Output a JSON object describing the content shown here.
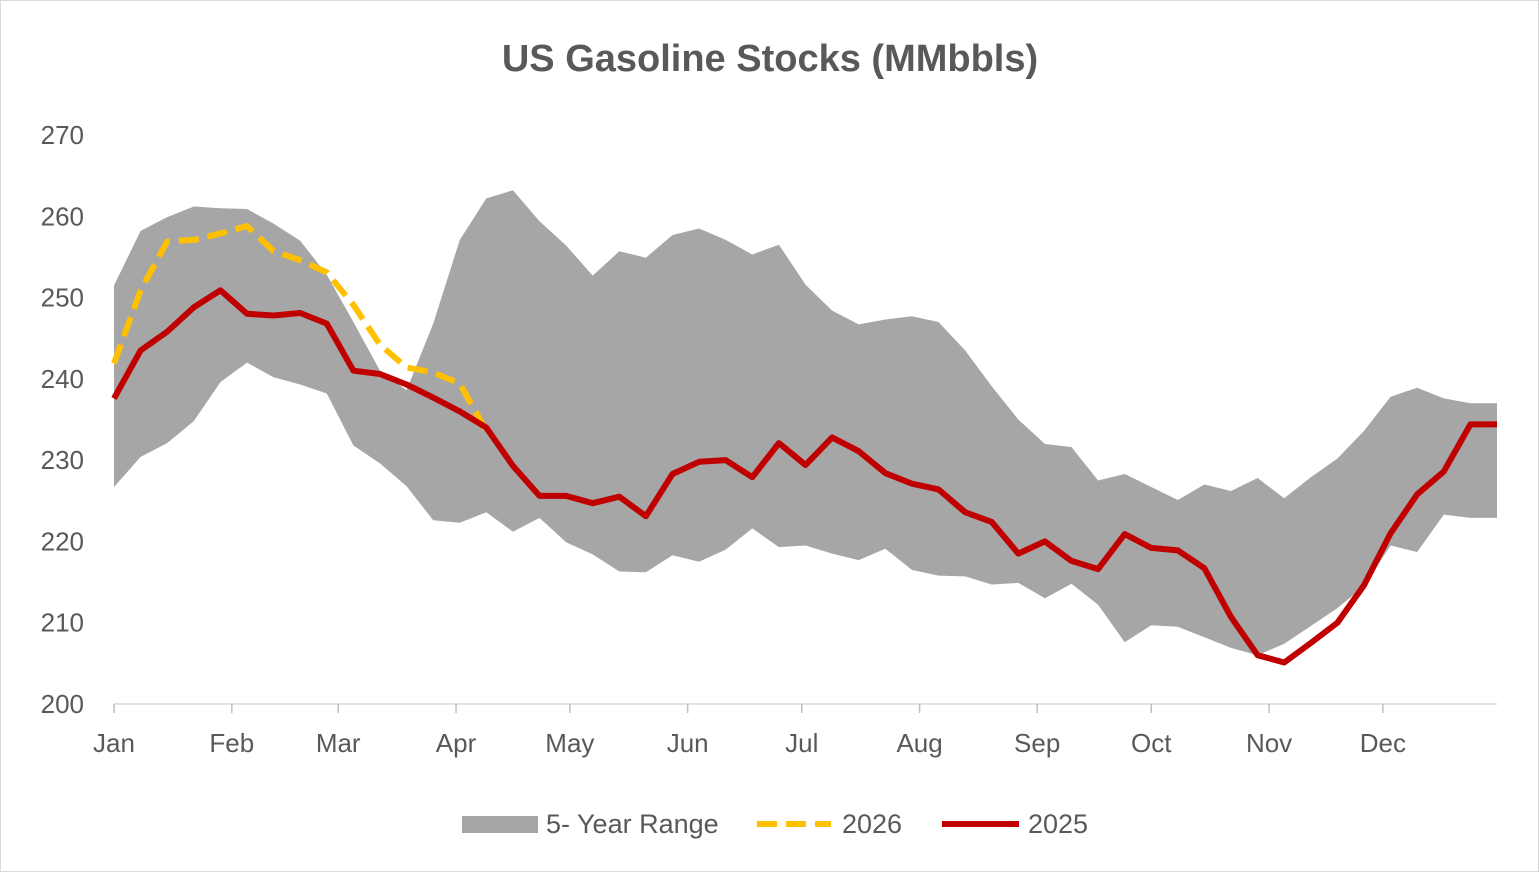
{
  "chart_data": {
    "type": "line",
    "title": "US Gasoline Stocks (MMbbls)",
    "xlabel": "",
    "ylabel": "",
    "ylim": [
      200,
      270
    ],
    "yticks": [
      200,
      210,
      220,
      230,
      240,
      250,
      260,
      270
    ],
    "x_unit": "week",
    "xlim": [
      1,
      53
    ],
    "month_labels": [
      "Jan",
      "Feb",
      "Mar",
      "Apr",
      "May",
      "Jun",
      "Jul",
      "Aug",
      "Sep",
      "Oct",
      "Nov",
      "Dec"
    ],
    "month_weeks": [
      1,
      5.43,
      9.43,
      13.86,
      18.14,
      22.57,
      26.86,
      31.29,
      35.71,
      40,
      44.43,
      48.71
    ],
    "grid": false,
    "legend_position": "bottom",
    "range": {
      "name": "5- Year Range",
      "color": "#a6a6a6",
      "weeks": [
        1,
        2,
        3,
        4,
        5,
        6,
        7,
        8,
        9,
        10,
        11,
        12,
        13,
        14,
        15,
        16,
        17,
        18,
        19,
        20,
        21,
        22,
        23,
        24,
        25,
        26,
        27,
        28,
        29,
        30,
        31,
        32,
        33,
        34,
        35,
        36,
        37,
        38,
        39,
        40,
        41,
        42,
        43,
        44,
        45,
        46,
        47,
        48,
        49,
        50,
        51,
        52,
        53
      ],
      "high": [
        251.5,
        258.2,
        259.9,
        261.2,
        261.0,
        260.9,
        259.1,
        257.0,
        252.8,
        247.0,
        241.0,
        238.6,
        246.8,
        257.1,
        262.2,
        263.2,
        259.4,
        256.4,
        252.7,
        255.7,
        254.9,
        257.7,
        258.5,
        257.1,
        255.3,
        256.5,
        251.6,
        248.4,
        246.7,
        247.3,
        247.7,
        247.0,
        243.5,
        239.1,
        235.0,
        232.0,
        231.6,
        227.5,
        228.3,
        226.7,
        225.1,
        227.0,
        226.2,
        227.8,
        225.3,
        227.9,
        230.2,
        233.6,
        237.8,
        238.9,
        237.6,
        237.0,
        237.0
      ],
      "low": [
        226.7,
        230.4,
        232.1,
        234.8,
        239.6,
        242.0,
        240.2,
        239.3,
        238.2,
        231.8,
        229.6,
        226.8,
        222.6,
        222.3,
        223.6,
        221.2,
        222.9,
        219.9,
        218.4,
        216.3,
        216.2,
        218.3,
        217.5,
        219.0,
        221.6,
        219.3,
        219.5,
        218.5,
        217.7,
        219.1,
        216.5,
        215.8,
        215.7,
        214.7,
        214.9,
        213.0,
        214.8,
        212.2,
        207.6,
        209.7,
        209.5,
        208.2,
        206.9,
        206.0,
        207.4,
        209.6,
        211.8,
        214.5,
        219.5,
        218.7,
        223.3,
        222.9,
        222.9
      ]
    },
    "series": [
      {
        "name": "2026",
        "color": "#ffc000",
        "dash": true,
        "x": [
          1,
          2,
          3,
          4,
          5,
          6,
          7,
          8,
          9,
          10,
          11,
          12,
          13,
          14,
          15
        ],
        "values": [
          241.9,
          250.9,
          256.9,
          257.1,
          257.9,
          258.8,
          255.7,
          254.6,
          253.1,
          249.1,
          244.2,
          241.4,
          240.8,
          239.4,
          233.6
        ]
      },
      {
        "name": "2025",
        "color": "#c00000",
        "dash": false,
        "x": [
          1,
          2,
          3,
          4,
          5,
          6,
          7,
          8,
          9,
          10,
          11,
          12,
          13,
          14,
          15,
          16,
          17,
          18,
          19,
          20,
          21,
          22,
          23,
          24,
          25,
          26,
          27,
          28,
          29,
          30,
          31,
          32,
          33,
          34,
          35,
          36,
          37,
          38,
          39,
          40,
          41,
          42,
          43,
          44,
          45,
          46,
          47,
          48,
          49,
          50,
          51,
          52,
          53
        ],
        "values": [
          237.6,
          243.5,
          245.8,
          248.8,
          250.9,
          248.0,
          247.8,
          248.1,
          246.8,
          241.0,
          240.6,
          239.3,
          237.7,
          236.0,
          234.0,
          229.3,
          225.6,
          225.6,
          224.7,
          225.5,
          223.1,
          228.3,
          229.8,
          230.0,
          227.9,
          232.1,
          229.4,
          232.8,
          231.1,
          228.4,
          227.1,
          226.4,
          223.6,
          222.4,
          218.5,
          220.0,
          217.6,
          216.6,
          220.9,
          219.2,
          218.9,
          216.7,
          210.7,
          206.0,
          205.1,
          207.5,
          210.0,
          214.6,
          221.0,
          225.8,
          228.6,
          234.4,
          234.4
        ]
      }
    ]
  }
}
